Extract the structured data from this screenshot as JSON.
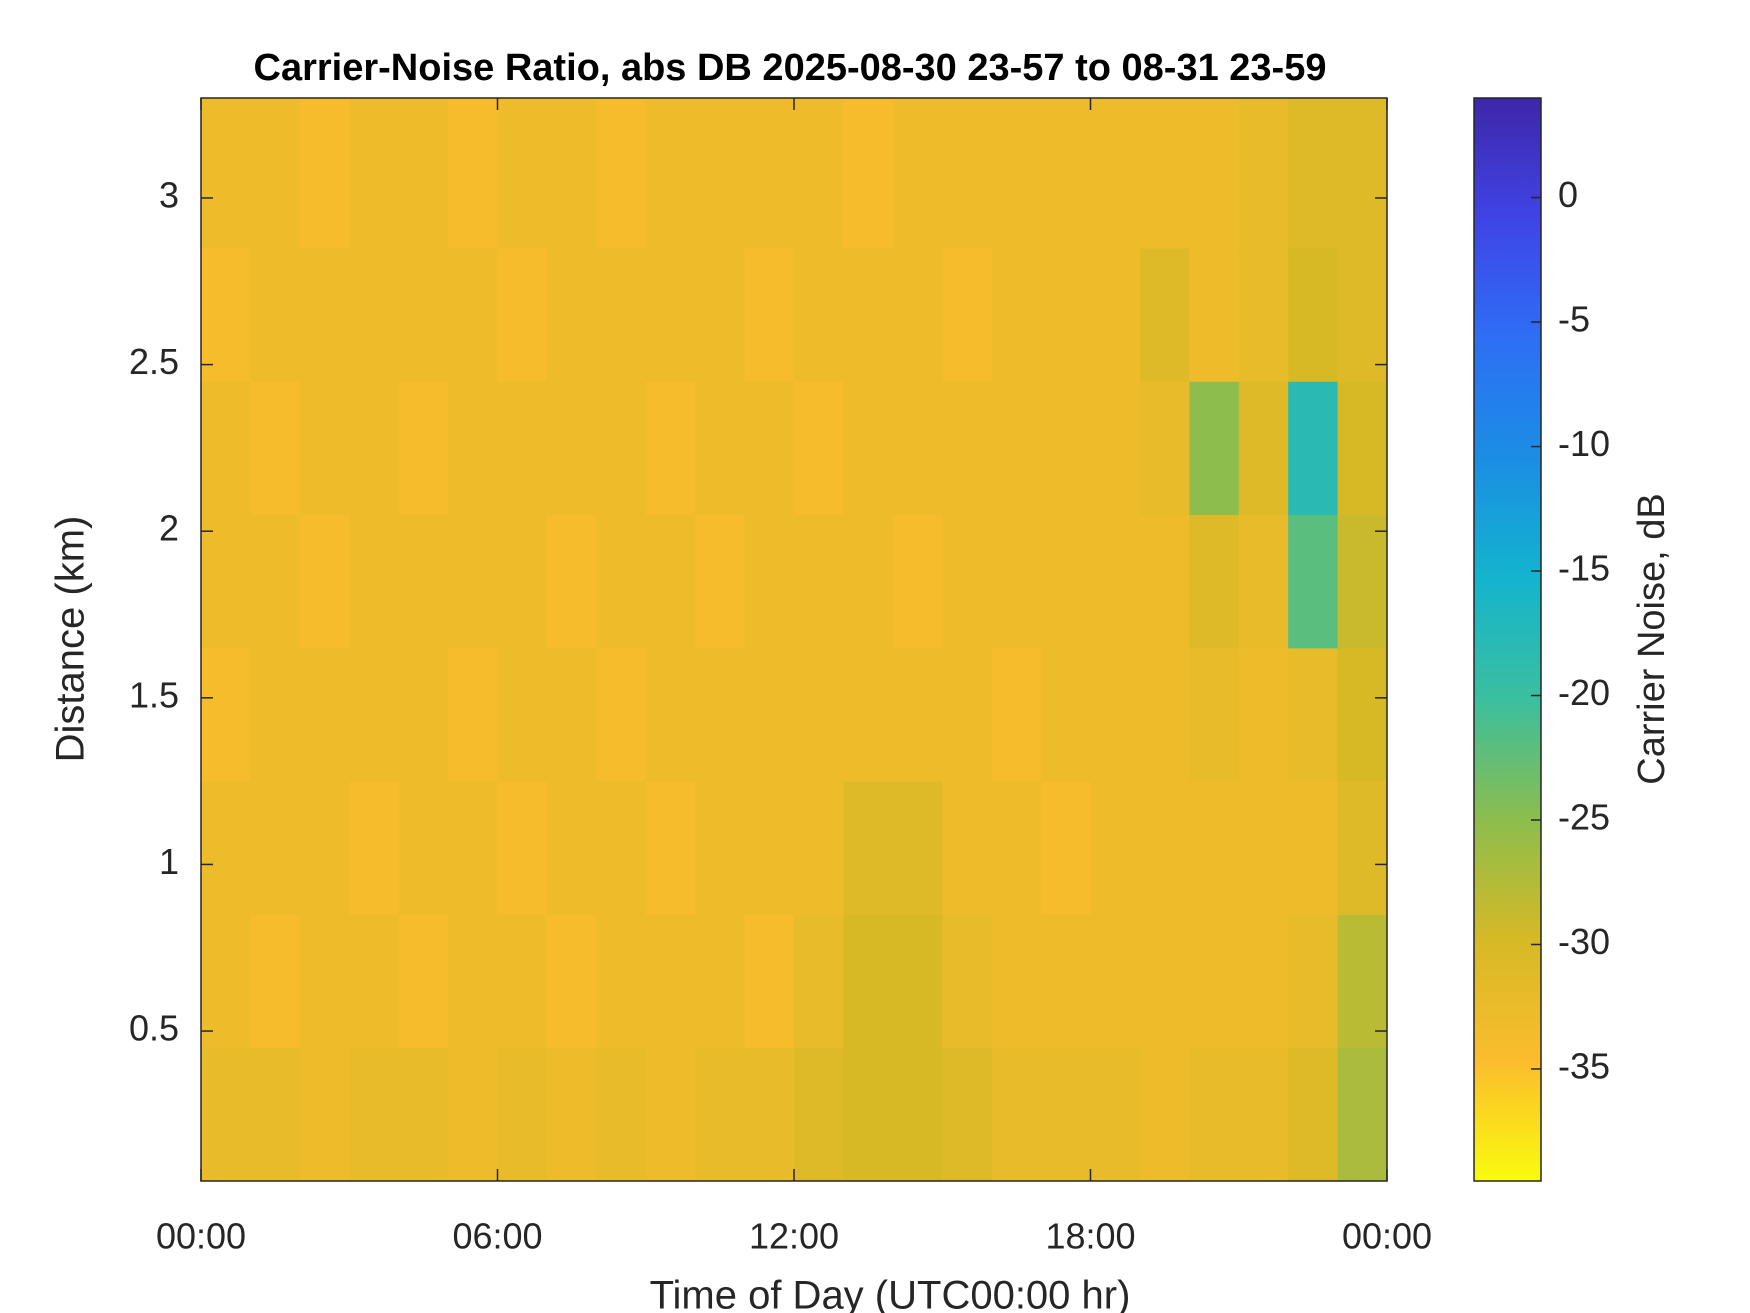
{
  "chart_data": {
    "type": "heatmap",
    "title": "Carrier-Noise Ratio, abs DB 2025-08-30 23-57 to 08-31 23-59",
    "x_label": "Time of Day (UTC00:00 hr)",
    "y_label": "Distance (km)",
    "colorbar_label": "Carrier Noise, dB",
    "x_edges": [
      0,
      1,
      2,
      3,
      4,
      5,
      6,
      7,
      8,
      9,
      10,
      11,
      12,
      13,
      14,
      15,
      16,
      17,
      18,
      19,
      20,
      21,
      22,
      23,
      24
    ],
    "y_edges": [
      0.05,
      0.45,
      0.85,
      1.25,
      1.65,
      2.05,
      2.45,
      2.85,
      3.3
    ],
    "z": [
      [
        -32,
        -32,
        -33,
        -32,
        -32,
        -33,
        -32,
        -33,
        -32,
        -33,
        -32,
        -32,
        -31,
        -30,
        -30,
        -31,
        -32,
        -32,
        -32,
        -33,
        -32,
        -32,
        -31,
        -27
      ],
      [
        -33,
        -34,
        -33,
        -33,
        -34,
        -33,
        -33,
        -34,
        -33,
        -33,
        -33,
        -34,
        -32,
        -30,
        -30,
        -32,
        -33,
        -33,
        -33,
        -33,
        -33,
        -33,
        -32,
        -28
      ],
      [
        -33,
        -33,
        -33,
        -34,
        -33,
        -33,
        -34,
        -33,
        -33,
        -34,
        -33,
        -33,
        -33,
        -31,
        -31,
        -33,
        -33,
        -34,
        -33,
        -33,
        -33,
        -33,
        -33,
        -31
      ],
      [
        -34,
        -33,
        -33,
        -33,
        -33,
        -34,
        -33,
        -33,
        -34,
        -33,
        -33,
        -33,
        -33,
        -33,
        -33,
        -33,
        -34,
        -33,
        -33,
        -33,
        -32,
        -33,
        -32,
        -30
      ],
      [
        -33,
        -33,
        -34,
        -33,
        -33,
        -33,
        -33,
        -34,
        -33,
        -33,
        -34,
        -33,
        -33,
        -33,
        -34,
        -33,
        -33,
        -33,
        -33,
        -33,
        -31,
        -32,
        -22,
        -29
      ],
      [
        -33,
        -34,
        -33,
        -33,
        -34,
        -33,
        -33,
        -33,
        -33,
        -34,
        -33,
        -33,
        -34,
        -33,
        -33,
        -33,
        -33,
        -33,
        -33,
        -32,
        -25,
        -31,
        -18,
        -30
      ],
      [
        -34,
        -33,
        -33,
        -33,
        -33,
        -33,
        -34,
        -33,
        -33,
        -33,
        -33,
        -34,
        -33,
        -33,
        -33,
        -34,
        -33,
        -33,
        -33,
        -31,
        -33,
        -32,
        -30,
        -31
      ],
      [
        -33,
        -33,
        -34,
        -33,
        -33,
        -34,
        -33,
        -33,
        -34,
        -33,
        -33,
        -33,
        -33,
        -34,
        -33,
        -33,
        -33,
        -33,
        -33,
        -33,
        -33,
        -32,
        -31,
        -31
      ]
    ],
    "xlim": [
      0,
      24
    ],
    "xticks": [
      {
        "value": 0,
        "label": "00:00"
      },
      {
        "value": 6,
        "label": "06:00"
      },
      {
        "value": 12,
        "label": "12:00"
      },
      {
        "value": 18,
        "label": "18:00"
      },
      {
        "value": 24,
        "label": "00:00"
      }
    ],
    "ylim": [
      0.05,
      3.3
    ],
    "yticks": [
      0.5,
      1,
      1.5,
      2,
      2.5,
      3
    ],
    "clim": [
      -39.5,
      4
    ],
    "cticks": [
      -35,
      -30,
      -25,
      -20,
      -15,
      -10,
      -5,
      0
    ],
    "colormap": [
      "#f9fb0e",
      "#fbbd2d",
      "#d6b926",
      "#8dbd4d",
      "#3bbf9e",
      "#14b4cd",
      "#1b8ee3",
      "#2d6ff5",
      "#4044e6",
      "#3e26a8"
    ]
  }
}
